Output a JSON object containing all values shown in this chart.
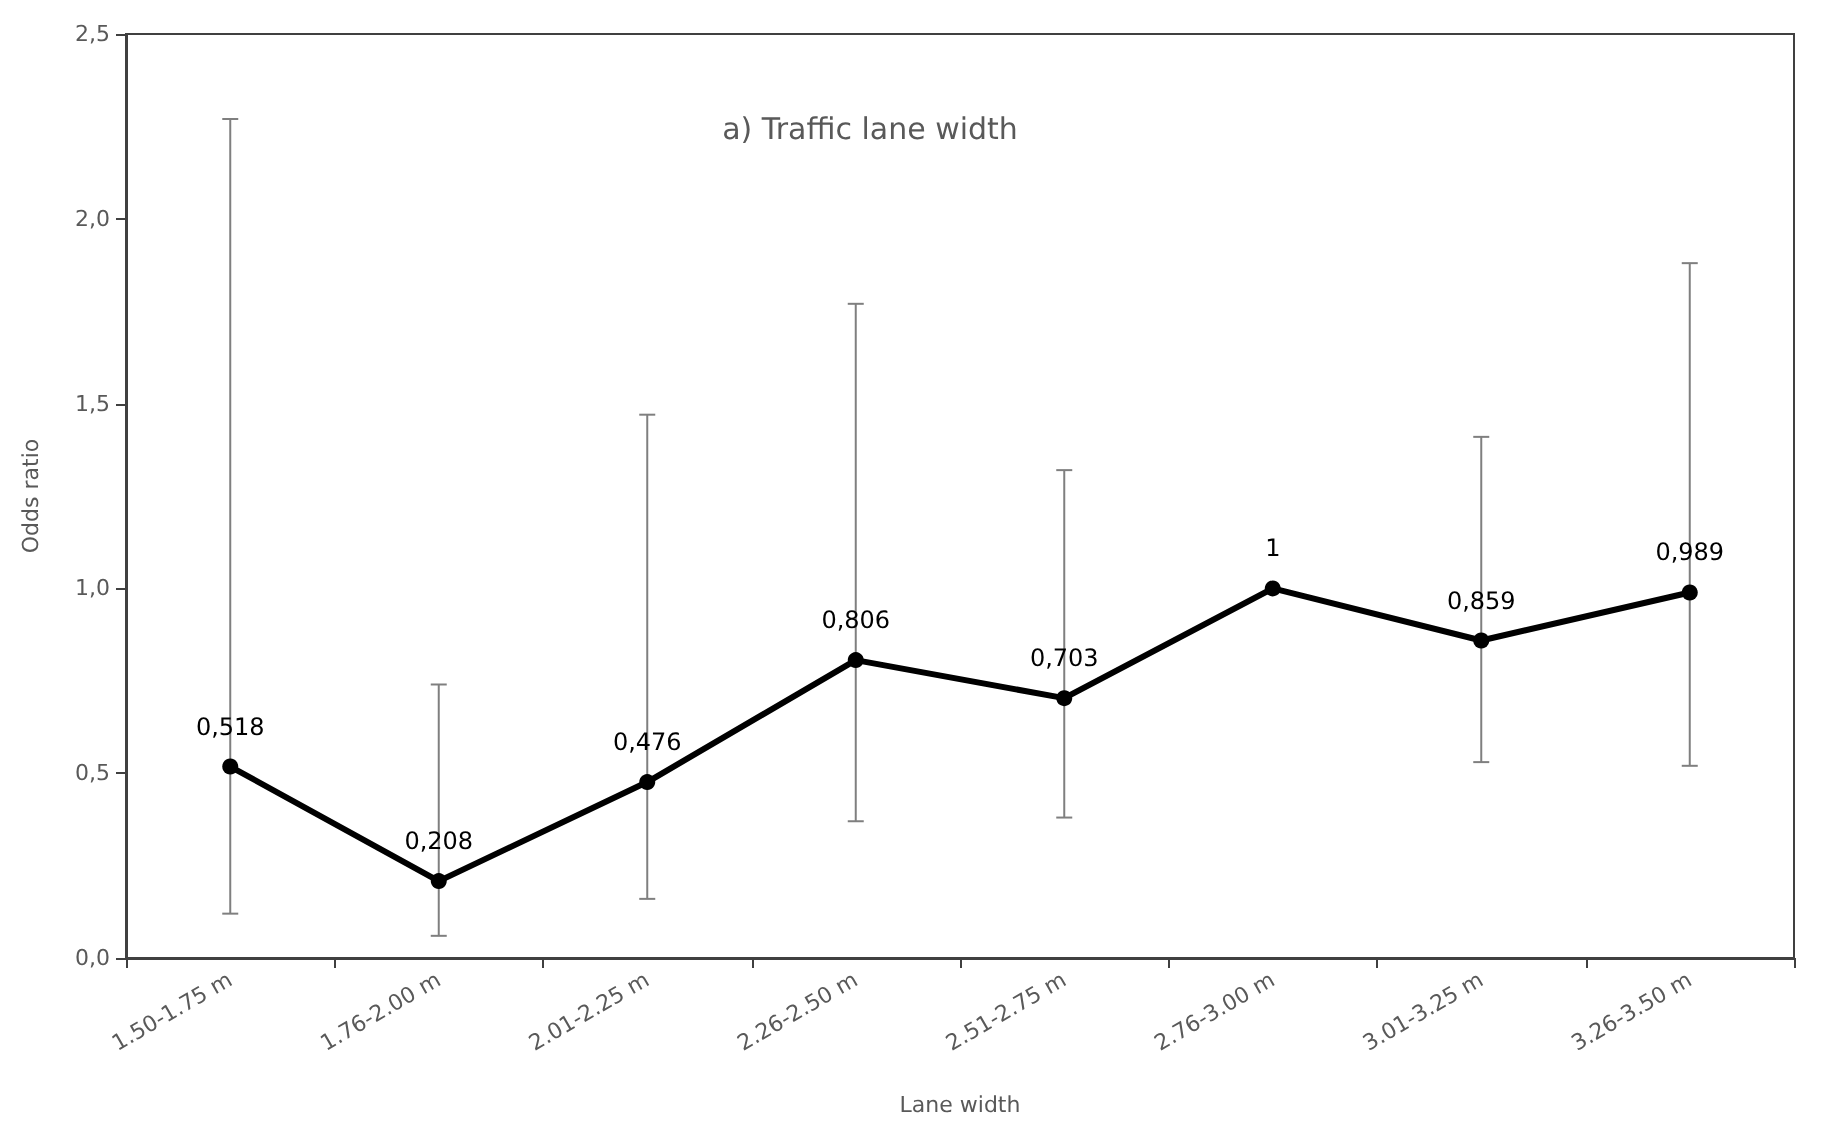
{
  "chart_data": {
    "type": "line",
    "title": "a) Traffic lane width",
    "xlabel": "Lane width",
    "ylabel": "Odds ratio",
    "categories": [
      "1.50-1.75 m",
      "1.76-2.00 m",
      "2.01-2.25 m",
      "2.26-2.50 m",
      "2.51-2.75 m",
      "2.76-3.00 m",
      "3.01-3.25 m",
      "3.26-3.50 m"
    ],
    "series": [
      {
        "color": "#000000",
        "values": [
          0.518,
          0.208,
          0.476,
          0.806,
          0.703,
          1,
          0.859,
          0.989
        ],
        "value_labels": [
          "0,518",
          "0,208",
          "0,476",
          "0,806",
          "0,703",
          "1",
          "0,859",
          "0,989"
        ],
        "errors": [
          [
            0.12,
            2.27
          ],
          [
            0.06,
            0.74
          ],
          [
            0.16,
            1.47
          ],
          [
            0.37,
            1.77
          ],
          [
            0.38,
            1.32
          ],
          null,
          [
            0.53,
            1.41
          ],
          [
            0.52,
            1.88
          ]
        ]
      }
    ],
    "ylim": [
      0,
      2.5
    ],
    "yticks": [
      {
        "value": 0,
        "label": "0,0"
      },
      {
        "value": 0.5,
        "label": "0,5"
      },
      {
        "value": 1,
        "label": "1,0"
      },
      {
        "value": 1.5,
        "label": "1,5"
      },
      {
        "value": 2,
        "label": "2,0"
      },
      {
        "value": 2.5,
        "label": "2,5"
      }
    ],
    "grid": false,
    "marker": "circle",
    "line_style": "solid"
  }
}
